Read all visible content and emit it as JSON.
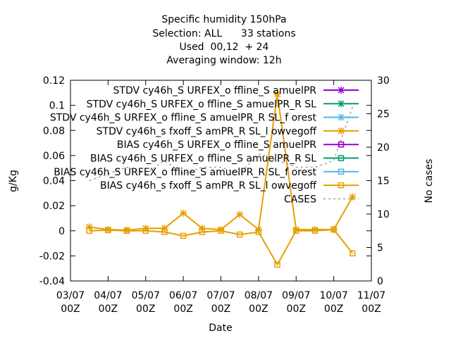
{
  "chart_data": {
    "type": "line",
    "title_lines": [
      "Specific humidity 150hPa",
      "Selection: ALL      33 stations",
      "Used  00,12  + 24",
      "Averaging window: 12h"
    ],
    "xlabel": "Date",
    "ylabel": "g/Kg",
    "y2label": "No cases",
    "x_ticks": [
      {
        "day": 3,
        "line1": "03/07",
        "line2": "00Z"
      },
      {
        "day": 4,
        "line1": "04/07",
        "line2": "00Z"
      },
      {
        "day": 5,
        "line1": "05/07",
        "line2": "00Z"
      },
      {
        "day": 6,
        "line1": "06/07",
        "line2": "00Z"
      },
      {
        "day": 7,
        "line1": "07/07",
        "line2": "00Z"
      },
      {
        "day": 8,
        "line1": "08/07",
        "line2": "00Z"
      },
      {
        "day": 9,
        "line1": "09/07",
        "line2": "00Z"
      },
      {
        "day": 10,
        "line1": "10/07",
        "line2": "00Z"
      },
      {
        "day": 11,
        "line1": "11/07",
        "line2": "00Z"
      }
    ],
    "xlim": [
      3,
      11
    ],
    "ylim": [
      -0.04,
      0.12
    ],
    "yticks": [
      "-0.04",
      "-0.02",
      "0",
      "0.02",
      "0.04",
      "0.06",
      "0.08",
      "0.1",
      "0.12"
    ],
    "y2lim": [
      0,
      30
    ],
    "y2ticks": [
      "0",
      "5",
      "10",
      "15",
      "20",
      "25",
      "30"
    ],
    "legend_position": "top-right",
    "series": [
      {
        "name": "STDV cy46h_S URFEX_o ffline_S amuelPR",
        "color": "#9400d3",
        "marker": "star",
        "axis": "y",
        "x": [],
        "values": []
      },
      {
        "name": "STDV cy46h_S URFEX_o ffline_S amuelPR_R SL",
        "color": "#009e73",
        "marker": "star",
        "axis": "y",
        "x": [],
        "values": []
      },
      {
        "name": "STDV cy46h_S URFEX_o ffline_S amuelPR_R SL_f orest",
        "color": "#56b4e9",
        "marker": "star",
        "axis": "y",
        "x": [],
        "values": []
      },
      {
        "name": "STDV cy46h_s fxoff_S amPR_R SL_l owvegoff",
        "color": "#e69f00",
        "marker": "star",
        "axis": "y",
        "x": [
          3.5,
          4.0,
          4.5,
          5.0,
          5.5,
          6.0,
          6.5,
          7.0,
          7.5,
          8.0,
          8.5,
          9.0,
          9.5,
          10.0,
          10.5
        ],
        "values": [
          0.003,
          0.001,
          0.0005,
          0.002,
          0.002,
          0.014,
          0.002,
          0.001,
          0.013,
          0.001,
          0.109,
          0.001,
          0.001,
          0.001,
          0.027
        ]
      },
      {
        "name": "BIAS cy46h_S URFEX_o ffline_S amuelPR",
        "color": "#9400d3",
        "marker": "square",
        "axis": "y",
        "x": [],
        "values": []
      },
      {
        "name": "BIAS cy46h_S URFEX_o ffline_S amuelPR_R SL",
        "color": "#009e73",
        "marker": "square",
        "axis": "y",
        "x": [],
        "values": []
      },
      {
        "name": "BIAS cy46h_S URFEX_o ffline_S amuelPR_R SL_f orest",
        "color": "#56b4e9",
        "marker": "square",
        "axis": "y",
        "x": [],
        "values": []
      },
      {
        "name": "BIAS cy46h_s fxoff_S amPR_R SL_l owvegoff",
        "color": "#e69f00",
        "marker": "square",
        "axis": "y",
        "x": [
          3.5,
          4.0,
          4.5,
          5.0,
          5.5,
          6.0,
          6.5,
          7.0,
          7.5,
          8.0,
          8.5,
          9.0,
          9.5,
          10.0,
          10.5
        ],
        "values": [
          0.0,
          0.0005,
          0.0,
          0.0,
          -0.001,
          -0.004,
          -0.001,
          0.0,
          -0.003,
          -0.001,
          -0.027,
          0.0,
          0.0,
          0.001,
          -0.018
        ]
      },
      {
        "name": "CASES",
        "color": "#a0a0a0",
        "marker": "none",
        "dashed": true,
        "axis": "y2",
        "x": [
          3.5,
          4.0,
          4.5,
          5.0,
          5.5,
          6.0,
          6.5,
          7.0,
          7.5,
          8.0,
          8.5,
          9.0,
          9.5,
          10.0,
          10.5
        ],
        "values": [
          15,
          16,
          17,
          16,
          18,
          16,
          17,
          17,
          16,
          19,
          18,
          17,
          17,
          18,
          26
        ]
      }
    ]
  }
}
